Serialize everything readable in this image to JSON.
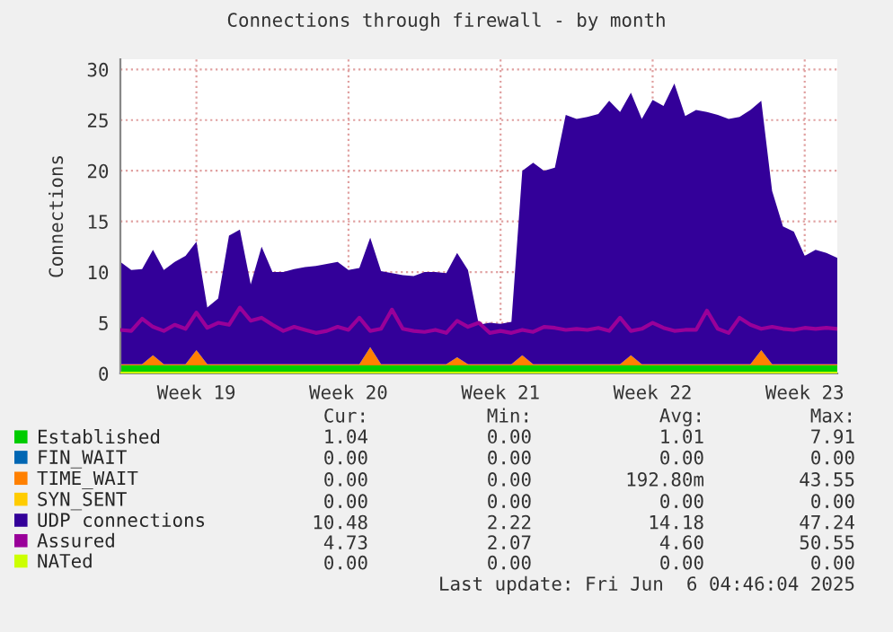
{
  "chart_data": {
    "type": "area",
    "title": "Connections through firewall - by month",
    "ylabel": "Connections",
    "stacked": true,
    "grid": true,
    "legend": "bottom",
    "categories": [
      null,
      null,
      null,
      null,
      null,
      null,
      null,
      "Week 19",
      null,
      null,
      null,
      null,
      null,
      null,
      null,
      null,
      null,
      null,
      null,
      null,
      null,
      "Week 20",
      null,
      null,
      null,
      null,
      null,
      null,
      null,
      null,
      null,
      null,
      null,
      null,
      null,
      "Week 21",
      null,
      null,
      null,
      null,
      null,
      null,
      null,
      null,
      null,
      null,
      null,
      null,
      null,
      "Week 22",
      null,
      null,
      null,
      null,
      null,
      null,
      null,
      null,
      null,
      null,
      null,
      null,
      null,
      "Week 23",
      null,
      null,
      null
    ],
    "ylim": [
      0,
      31
    ],
    "yticks": [
      0,
      5,
      10,
      15,
      20,
      25,
      30
    ],
    "series": [
      {
        "name": "Established",
        "color": "#00cc00",
        "values": [
          0.8,
          0.8,
          0.8,
          0.8,
          0.8,
          0.8,
          0.8,
          0.8,
          0.8,
          0.8,
          0.8,
          0.8,
          0.8,
          0.8,
          0.8,
          0.8,
          0.8,
          0.8,
          0.8,
          0.8,
          0.8,
          0.8,
          0.8,
          0.8,
          0.8,
          0.8,
          0.8,
          0.8,
          0.8,
          0.8,
          0.8,
          0.8,
          0.8,
          0.8,
          0.8,
          0.8,
          0.8,
          0.8,
          0.8,
          0.8,
          0.8,
          0.8,
          0.8,
          0.8,
          0.8,
          0.8,
          0.8,
          0.8,
          0.8,
          0.8,
          0.8,
          0.8,
          0.8,
          0.8,
          0.8,
          0.8,
          0.8,
          0.8,
          0.8,
          0.8,
          0.8,
          0.8,
          0.8,
          0.8,
          0.8,
          0.8,
          0.8
        ]
      },
      {
        "name": "FIN_WAIT",
        "color": "#0066b3",
        "values": [
          null,
          null,
          null,
          null,
          null,
          null,
          null,
          null,
          null,
          null,
          null,
          null,
          null,
          null,
          null,
          null,
          null,
          null,
          null,
          null,
          null,
          null,
          null,
          null,
          null,
          null,
          null,
          null,
          null,
          null,
          null,
          null,
          null,
          null,
          null,
          null,
          null,
          null,
          null,
          null,
          null,
          null,
          null,
          null,
          null,
          null,
          null,
          null,
          null,
          null,
          null,
          null,
          null,
          null,
          null,
          null,
          null,
          null,
          null,
          null,
          null,
          null,
          null,
          null,
          null,
          null,
          null
        ]
      },
      {
        "name": "TIME_WAIT",
        "color": "#ff8000",
        "values": [
          0.1,
          0.1,
          0.1,
          1.0,
          0.1,
          0.1,
          0.1,
          1.5,
          0.1,
          0.1,
          0.1,
          0.1,
          0.1,
          0.1,
          0.1,
          0.1,
          0.1,
          0.1,
          0.1,
          0.1,
          0.1,
          0.1,
          0.1,
          1.8,
          0.1,
          0.1,
          0.1,
          0.1,
          0.1,
          0.1,
          0.1,
          0.8,
          0.1,
          0.1,
          0.1,
          0.1,
          0.1,
          1.0,
          0.1,
          0.1,
          0.1,
          0.1,
          0.1,
          0.1,
          0.1,
          0.1,
          0.1,
          1.0,
          0.1,
          0.1,
          0.1,
          0.1,
          0.1,
          0.1,
          0.1,
          0.1,
          0.1,
          0.1,
          0.1,
          1.5,
          0.1,
          0.1,
          0.1,
          0.1,
          0.1,
          0.1,
          0.1
        ]
      },
      {
        "name": "SYN_SENT",
        "color": "#ffcc00",
        "values": [
          null,
          null,
          null,
          null,
          null,
          null,
          null,
          null,
          null,
          null,
          null,
          null,
          null,
          null,
          null,
          null,
          null,
          null,
          null,
          null,
          null,
          null,
          null,
          null,
          null,
          null,
          null,
          null,
          null,
          null,
          null,
          null,
          null,
          null,
          null,
          null,
          null,
          null,
          null,
          null,
          null,
          null,
          null,
          null,
          null,
          null,
          null,
          null,
          null,
          null,
          null,
          null,
          null,
          null,
          null,
          null,
          null,
          null,
          null,
          null,
          null,
          null,
          null,
          null,
          null,
          null,
          null
        ]
      },
      {
        "name": "UDP connections",
        "color": "#330099",
        "values": [
          10.1,
          9.3,
          9.4,
          10.4,
          9.3,
          10.1,
          10.7,
          10.7,
          5.6,
          6.5,
          12.7,
          13.3,
          7.9,
          11.6,
          9.1,
          9.1,
          9.4,
          9.6,
          9.7,
          9.9,
          10.1,
          9.3,
          9.5,
          10.8,
          9.2,
          9.0,
          8.8,
          8.7,
          9.1,
          9.1,
          9.0,
          10.3,
          9.3,
          3.9,
          4.1,
          4.0,
          4.2,
          18.2,
          19.9,
          19.1,
          19.4,
          24.6,
          24.2,
          24.4,
          24.7,
          26.0,
          24.9,
          25.9,
          24.2,
          26.1,
          25.5,
          27.7,
          24.5,
          25.1,
          24.9,
          24.6,
          24.2,
          24.4,
          25.1,
          24.6,
          17.1,
          13.6,
          13.1,
          10.7,
          11.3,
          11.0,
          10.5
        ]
      },
      {
        "name": "Assured",
        "color": "#990099",
        "type": "line",
        "values": [
          4.3,
          4.2,
          5.4,
          4.6,
          4.2,
          4.8,
          4.4,
          6.0,
          4.5,
          5.0,
          4.8,
          6.5,
          5.2,
          5.5,
          4.8,
          4.2,
          4.6,
          4.3,
          4.0,
          4.2,
          4.6,
          4.3,
          5.5,
          4.2,
          4.4,
          6.3,
          4.4,
          4.2,
          4.1,
          4.3,
          4.0,
          5.2,
          4.6,
          5.0,
          4.0,
          4.2,
          4.0,
          4.3,
          4.1,
          4.6,
          4.5,
          4.3,
          4.4,
          4.3,
          4.5,
          4.2,
          5.5,
          4.2,
          4.4,
          5.0,
          4.5,
          4.2,
          4.3,
          4.3,
          6.2,
          4.4,
          4.0,
          5.5,
          4.8,
          4.4,
          4.6,
          4.4,
          4.3,
          4.5,
          4.4,
          4.5,
          4.4
        ]
      },
      {
        "name": "NATed",
        "color": "#ccff00",
        "type": "line",
        "values": [
          0,
          0,
          0,
          0,
          0,
          0,
          0,
          0,
          0,
          0,
          0,
          0,
          0,
          0,
          0,
          0,
          0,
          0,
          0,
          0,
          0,
          0,
          0,
          0,
          0,
          0,
          0,
          0,
          0,
          0,
          0,
          0,
          0,
          0,
          0,
          0,
          0,
          0,
          0,
          0,
          0,
          0,
          0,
          0,
          0,
          0,
          0,
          0,
          0,
          0,
          0,
          0,
          0,
          0,
          0,
          0,
          0,
          0,
          0,
          0,
          0,
          0,
          0,
          0,
          0,
          0,
          0
        ]
      }
    ],
    "annotations": [
      "Cur:",
      "Min:",
      "Avg:",
      "Max:",
      "1.04",
      "0.00",
      "1.01",
      "7.91",
      "0.00",
      "0.00",
      "0.00",
      "0.00",
      "0.00",
      "0.00",
      "192.80m",
      "43.55",
      "0.00",
      "0.00",
      "0.00",
      "0.00",
      "10.48",
      "2.22",
      "14.18",
      "47.24",
      "4.73",
      "2.07",
      "4.60",
      "50.55",
      "0.00",
      "0.00",
      "0.00",
      "0.00",
      "Last update: Fri Jun  6 04:46:04 2025"
    ]
  }
}
